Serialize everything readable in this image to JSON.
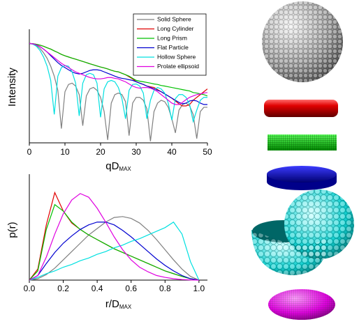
{
  "chart_data": [
    {
      "type": "line",
      "y_label": "Intensity",
      "x_label": {
        "main": "qD",
        "sub": "MAX"
      },
      "yscale": "log",
      "legend": "upper right",
      "xlim": [
        0,
        50
      ],
      "xticks": [
        0,
        10,
        20,
        30,
        40,
        50
      ],
      "ylim": [
        1e-07,
        10
      ],
      "x": [
        0,
        1,
        2,
        3,
        4,
        5,
        6,
        7,
        8,
        9,
        10,
        11,
        12,
        13,
        14,
        15,
        16,
        17,
        18,
        19,
        20,
        21,
        22,
        23,
        24,
        25,
        26,
        27,
        28,
        29,
        30,
        31,
        32,
        33,
        34,
        35,
        36,
        37,
        38,
        39,
        40,
        41,
        42,
        43,
        44,
        45,
        46,
        47,
        48,
        49,
        50
      ],
      "series": [
        {
          "name": "Solid Sphere",
          "color": "#808080",
          "values": [
            1,
            0.89,
            0.71,
            0.45,
            0.22,
            0.089,
            0.025,
            0.005,
            0.0005,
            1e-06,
            0.0004,
            0.0013,
            0.0016,
            0.001,
            0.00025,
            1.6e-06,
            0.0002,
            0.00063,
            0.0008,
            0.0005,
            0.00016,
            1.6e-05,
            1.6e-07,
            6.3e-05,
            0.00025,
            0.00032,
            0.00025,
            8e-05,
            3.2e-07,
            6.3e-05,
            0.00016,
            0.00016,
            0.0001,
            2.5e-05,
            1.3e-07,
            1.6e-05,
            6.3e-05,
            0.0001,
            8e-05,
            3.2e-05,
            5e-06,
            5e-07,
            2e-05,
            5e-05,
            6.3e-05,
            4e-05,
            1e-05,
            2e-07,
            1.6e-05,
            3.2e-05,
            3.2e-05
          ]
        },
        {
          "name": "Long Cylinder",
          "color": "#e00000",
          "values": [
            1,
            0.955,
            0.87,
            0.76,
            0.63,
            0.5,
            0.4,
            0.3,
            0.23,
            0.17,
            0.135,
            0.112,
            0.093,
            0.078,
            0.065,
            0.054,
            0.045,
            0.037,
            0.031,
            0.026,
            0.022,
            0.019,
            0.016,
            0.013,
            0.011,
            0.01,
            0.0079,
            0.0063,
            0.0045,
            0.0032,
            0.002,
            0.0016,
            0.0013,
            0.001,
            0.00089,
            0.00079,
            0.00056,
            0.0004,
            0.00028,
            0.0002,
            0.00014,
            8.9e-05,
            5.6e-05,
            4e-05,
            4e-05,
            5e-05,
            0.0001,
            0.00016,
            0.00025,
            0.0004,
            0.00063
          ]
        },
        {
          "name": "Long Prism",
          "color": "#00c000",
          "values": [
            1,
            0.955,
            0.87,
            0.76,
            0.63,
            0.5,
            0.4,
            0.3,
            0.23,
            0.17,
            0.135,
            0.112,
            0.093,
            0.078,
            0.065,
            0.054,
            0.045,
            0.037,
            0.031,
            0.026,
            0.022,
            0.019,
            0.016,
            0.013,
            0.011,
            0.01,
            0.0079,
            0.0063,
            0.005,
            0.0035,
            0.0025,
            0.0022,
            0.002,
            0.0018,
            0.0016,
            0.0014,
            0.0013,
            0.0011,
            0.001,
            0.00089,
            0.00079,
            0.00071,
            0.00063,
            0.00056,
            0.0005,
            0.00045,
            0.00035,
            0.00032,
            0.00028,
            0.00025,
            0.0002
          ]
        },
        {
          "name": "Flat Particle",
          "color": "#0000d0",
          "values": [
            1,
            0.93,
            0.79,
            0.6,
            0.4,
            0.25,
            0.14,
            0.079,
            0.045,
            0.028,
            0.02,
            0.014,
            0.01,
            0.0079,
            0.0071,
            0.0079,
            0.01,
            0.0126,
            0.014,
            0.014,
            0.0126,
            0.01,
            0.0079,
            0.0063,
            0.005,
            0.004,
            0.0035,
            0.0032,
            0.0028,
            0.0025,
            0.002,
            0.0016,
            0.0013,
            0.001,
            0.00079,
            0.00063,
            0.0005,
            0.0004,
            0.00028,
            0.0002,
            0.00014,
            0.0001,
            7.1e-05,
            5.6e-05,
            6.3e-05,
            8.9e-05,
            0.0001,
            8.9e-05,
            6.3e-05,
            5e-05,
            5e-05
          ]
        },
        {
          "name": "Hollow Sphere",
          "color": "#00e0e0",
          "values": [
            1,
            0.89,
            0.63,
            0.32,
            0.11,
            0.025,
            0.0025,
            1e-05,
            0.005,
            0.02,
            0.028,
            0.025,
            0.01,
            0.0016,
            7.9e-06,
            0.0016,
            0.0063,
            0.0079,
            0.0063,
            0.0016,
            6.3e-06,
            0.00063,
            0.002,
            0.0025,
            0.002,
            0.00079,
            0.00013,
            5e-06,
            0.0005,
            0.0013,
            0.0014,
            0.001,
            0.00032,
            5e-06,
            0.0001,
            0.0005,
            0.00079,
            0.00063,
            0.00032,
            6.3e-05,
            4e-06,
            0.00013,
            0.00025,
            0.00025,
            0.00016,
            5e-05,
            3.2e-06,
            2e-05,
            0.0001,
            0.00016,
            0.00016
          ]
        },
        {
          "name": "Prolate ellipsoid",
          "color": "#e000e0",
          "values": [
            1,
            0.93,
            0.79,
            0.6,
            0.4,
            0.25,
            0.16,
            0.1,
            0.063,
            0.04,
            0.028,
            0.02,
            0.014,
            0.01,
            0.0079,
            0.0063,
            0.005,
            0.004,
            0.0035,
            0.0032,
            0.0032,
            0.0035,
            0.004,
            0.004,
            0.0035,
            0.0032,
            0.0025,
            0.002,
            0.0014,
            0.001,
            0.00079,
            0.00071,
            0.00079,
            0.00079,
            0.00071,
            0.00056,
            0.0004,
            0.00025,
            0.00016,
            0.0001,
            6.3e-05,
            5e-05,
            5e-05,
            7.1e-05,
            0.00011,
            0.00016,
            0.0002,
            0.00025,
            0.00028,
            0.00032,
            0.00035
          ]
        }
      ]
    },
    {
      "type": "line",
      "y_label": "p(r)",
      "x_label": {
        "main": "r/D",
        "sub": "MAX"
      },
      "xlim": [
        0,
        1.05
      ],
      "xticks": [
        {
          "value": 0,
          "label": "0.0"
        },
        0.2,
        0.4,
        0.6,
        0.8,
        {
          "value": 1,
          "label": "1.0"
        }
      ],
      "ylim": [
        0,
        1.15
      ],
      "x": [
        0,
        0.05,
        0.1,
        0.15,
        0.2,
        0.25,
        0.3,
        0.35,
        0.4,
        0.45,
        0.5,
        0.55,
        0.6,
        0.65,
        0.7,
        0.75,
        0.8,
        0.85,
        0.9,
        0.95,
        1
      ],
      "series": [
        {
          "name": "Solid Sphere",
          "color": "#808080",
          "values": [
            0,
            0.015,
            0.06,
            0.13,
            0.22,
            0.31,
            0.4,
            0.49,
            0.56,
            0.63,
            0.68,
            0.69,
            0.67,
            0.62,
            0.54,
            0.44,
            0.33,
            0.22,
            0.12,
            0.04,
            0
          ]
        },
        {
          "name": "Long Cylinder",
          "color": "#e00000",
          "values": [
            0,
            0.12,
            0.6,
            0.95,
            0.75,
            0.62,
            0.55,
            0.49,
            0.44,
            0.39,
            0.34,
            0.3,
            0.26,
            0.22,
            0.18,
            0.14,
            0.1,
            0.07,
            0.04,
            0.015,
            0
          ]
        },
        {
          "name": "Long Prism",
          "color": "#00c000",
          "values": [
            0,
            0.1,
            0.55,
            0.82,
            0.75,
            0.63,
            0.55,
            0.49,
            0.44,
            0.39,
            0.34,
            0.3,
            0.26,
            0.22,
            0.18,
            0.14,
            0.1,
            0.07,
            0.04,
            0.015,
            0
          ]
        },
        {
          "name": "Flat Particle",
          "color": "#0000d0",
          "values": [
            0,
            0.05,
            0.18,
            0.3,
            0.4,
            0.48,
            0.55,
            0.6,
            0.63,
            0.63,
            0.6,
            0.54,
            0.47,
            0.39,
            0.31,
            0.23,
            0.16,
            0.1,
            0.05,
            0.015,
            0
          ]
        },
        {
          "name": "Hollow Sphere",
          "color": "#00e0e0",
          "values": [
            0,
            0.03,
            0.07,
            0.1,
            0.14,
            0.17,
            0.21,
            0.24,
            0.28,
            0.31,
            0.35,
            0.38,
            0.42,
            0.45,
            0.49,
            0.53,
            0.57,
            0.63,
            0.5,
            0.2,
            0
          ]
        },
        {
          "name": "Prolate ellipsoid",
          "color": "#e000e0",
          "values": [
            0,
            0.05,
            0.25,
            0.5,
            0.72,
            0.87,
            0.94,
            0.9,
            0.78,
            0.63,
            0.47,
            0.33,
            0.22,
            0.14,
            0.09,
            0.05,
            0.03,
            0.015,
            0.006,
            0.002,
            0
          ]
        }
      ]
    }
  ]
}
